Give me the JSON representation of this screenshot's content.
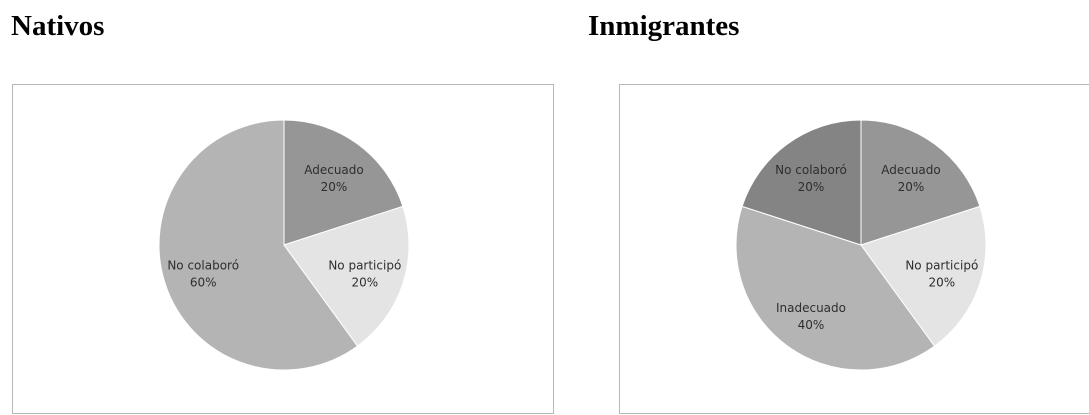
{
  "headings": {
    "left": "Nativos",
    "right": "Inmigrantes"
  },
  "chart_data": [
    {
      "type": "pie",
      "title": "Nativos",
      "slices": [
        {
          "label": "Adecuado",
          "value": 20,
          "display": "20%",
          "color": "#969696"
        },
        {
          "label": "No participó",
          "value": 20,
          "display": "20%",
          "color": "#e4e4e4"
        },
        {
          "label": "No colaboró",
          "value": 60,
          "display": "60%",
          "color": "#b4b4b4"
        }
      ]
    },
    {
      "type": "pie",
      "title": "Inmigrantes",
      "slices": [
        {
          "label": "Adecuado",
          "value": 20,
          "display": "20%",
          "color": "#969696"
        },
        {
          "label": "No participó",
          "value": 20,
          "display": "20%",
          "color": "#e4e4e4"
        },
        {
          "label": "Inadecuado",
          "value": 40,
          "display": "40%",
          "color": "#b4b4b4"
        },
        {
          "label": "No colaboró",
          "value": 20,
          "display": "20%",
          "color": "#848484"
        }
      ]
    }
  ]
}
